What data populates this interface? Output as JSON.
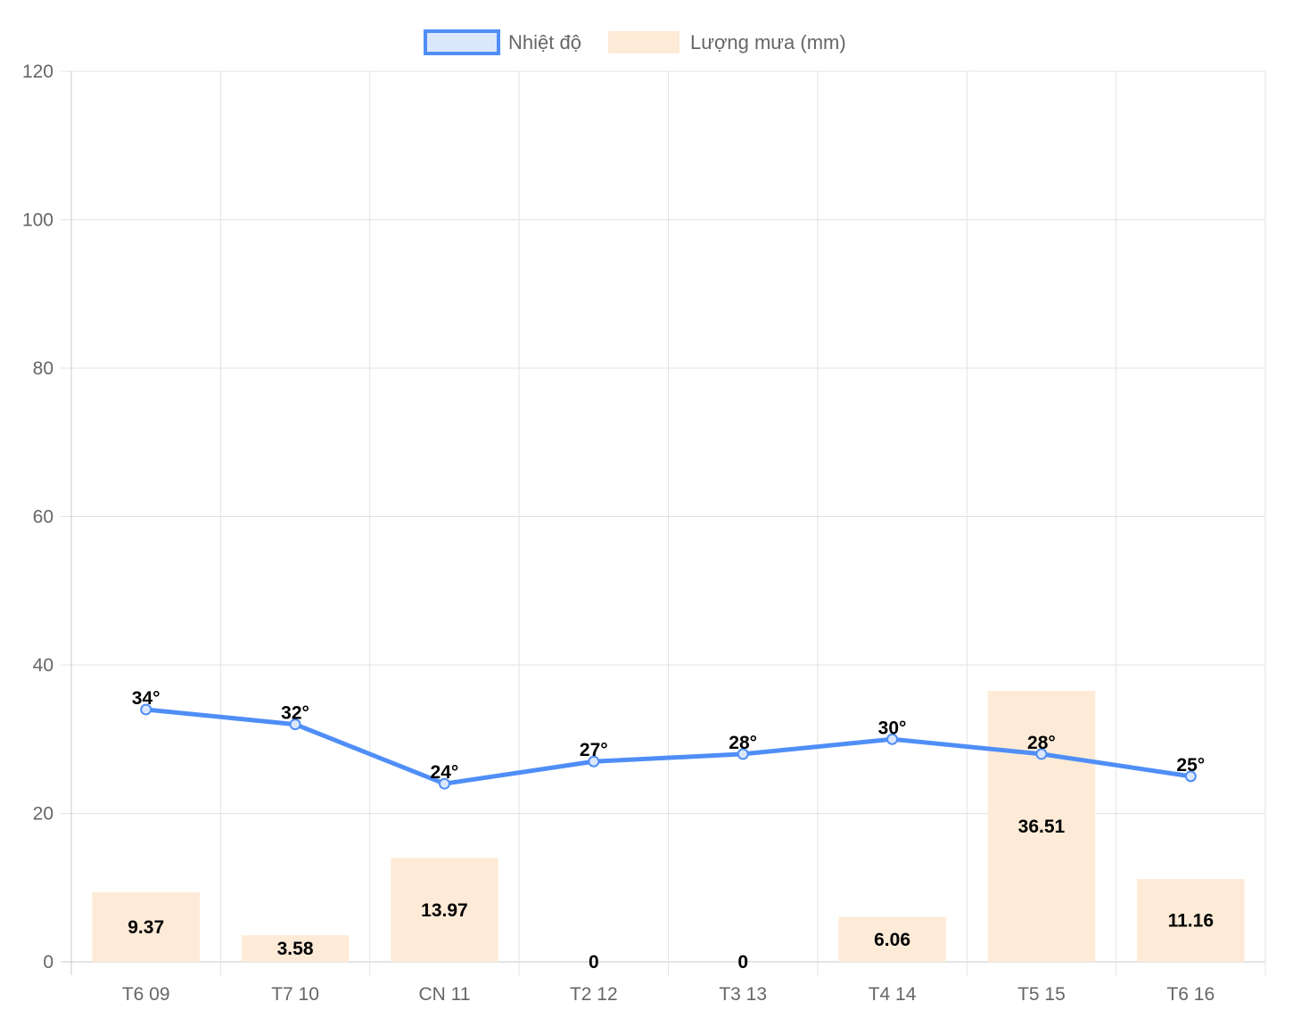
{
  "chart_data": {
    "type": "bar",
    "categories": [
      "T6 09",
      "T7 10",
      "CN 11",
      "T2 12",
      "T3 13",
      "T4 14",
      "T5 15",
      "T6 16"
    ],
    "series": [
      {
        "name": "Nhiệt độ",
        "type": "line",
        "values": [
          34,
          32,
          24,
          27,
          28,
          30,
          28,
          25
        ],
        "labels": [
          "34°",
          "32°",
          "24°",
          "27°",
          "28°",
          "30°",
          "28°",
          "25°"
        ],
        "color": "#4f8ef7",
        "fill": "#dbe7fd"
      },
      {
        "name": "Lượng mưa (mm)",
        "type": "bar",
        "values": [
          9.37,
          3.58,
          13.97,
          0,
          0,
          6.06,
          36.51,
          11.16
        ],
        "labels": [
          "9.37",
          "3.58",
          "13.97",
          "0",
          "0",
          "6.06",
          "36.51",
          "11.16"
        ],
        "color": "#fdebd7"
      }
    ],
    "ylim": [
      0,
      120
    ],
    "yticks": [
      "0",
      "20",
      "40",
      "60",
      "80",
      "100",
      "120"
    ],
    "grid": true,
    "legend_position": "top-center",
    "title": "",
    "xlabel": "",
    "ylabel": ""
  }
}
